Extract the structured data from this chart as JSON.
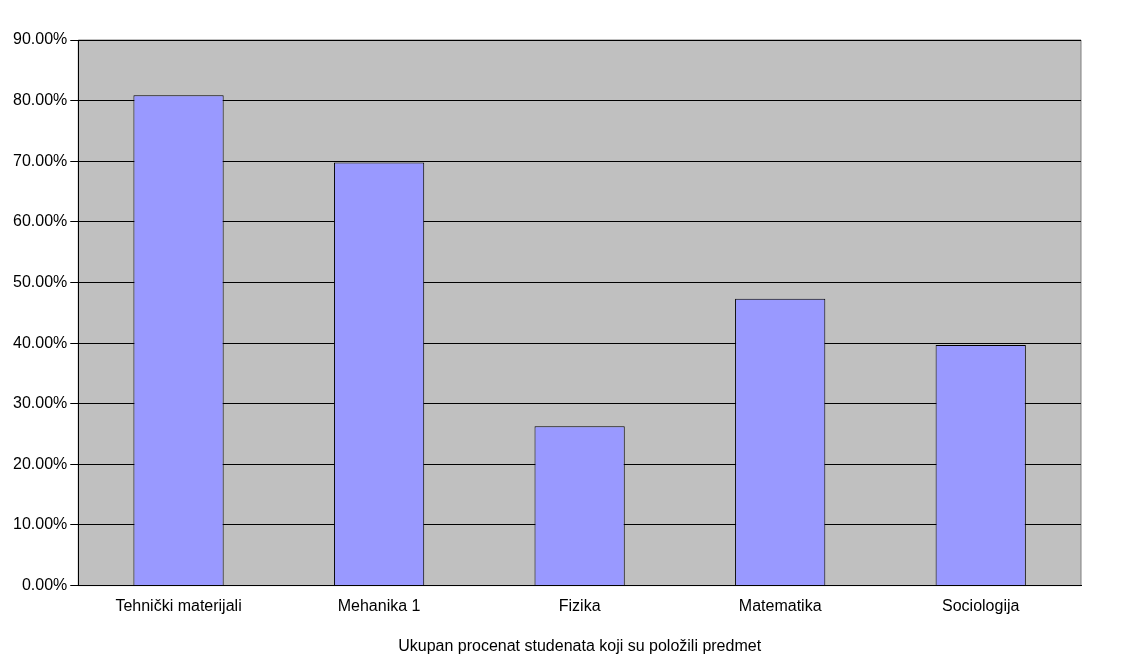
{
  "chart_data": {
    "type": "bar",
    "xlabel": "Ukupan procenat studenata koji su položili predmet",
    "categories": [
      "Tehnički materijali",
      "Mehanika 1",
      "Fizika",
      "Matematika",
      "Sociologija"
    ],
    "values": [
      80.9,
      69.8,
      26.3,
      47.3,
      39.7
    ],
    "color": "#9999ff",
    "ylim": [
      0,
      90
    ],
    "yticks": [
      {
        "value": 0,
        "label": "0.00%"
      },
      {
        "value": 10,
        "label": "10.00%"
      },
      {
        "value": 20,
        "label": "20.00%"
      },
      {
        "value": 30,
        "label": "30.00%"
      },
      {
        "value": 40,
        "label": "40.00%"
      },
      {
        "value": 50,
        "label": "50.00%"
      },
      {
        "value": 60,
        "label": "60.00%"
      },
      {
        "value": 70,
        "label": "70.00%"
      },
      {
        "value": 80,
        "label": "80.00%"
      },
      {
        "value": 90,
        "label": "90.00%"
      }
    ],
    "grid": "y",
    "legend": false
  }
}
